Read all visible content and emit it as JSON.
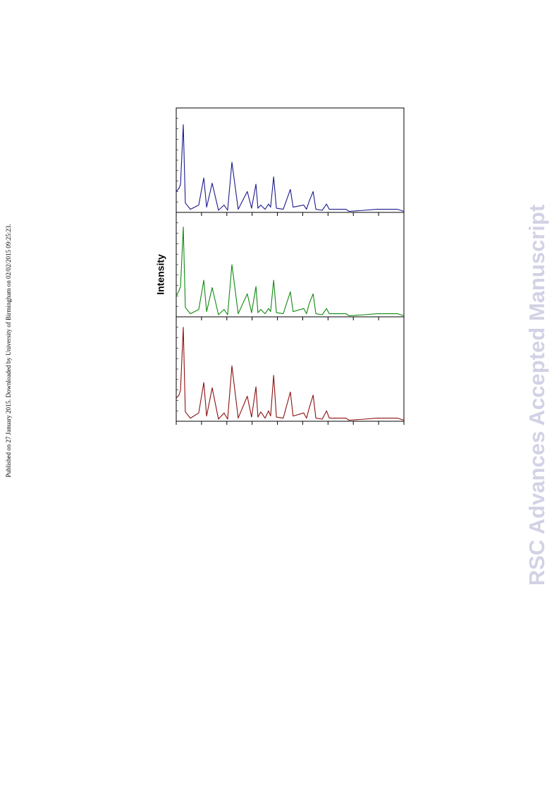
{
  "side_note": "Published on 27 January 2015. Downloaded by University of Birmingham on 02/02/2015 09:25:23.",
  "watermark": "RSC Advances Accepted Manuscript",
  "chart_data": [
    {
      "type": "line",
      "x": [
        0,
        1.1,
        1.7,
        2.8,
        3.6,
        5.6,
        8.9,
        10.9,
        12.0,
        14.2,
        16.7,
        18.9,
        20.3,
        22.0,
        24.5,
        28.1,
        29.8,
        31.5,
        32.3,
        33.4,
        35.1,
        36.5,
        37.3,
        38.5,
        39.6,
        42.3,
        45.1,
        46.2,
        50.4,
        51.5,
        52.6,
        54.1,
        55.2,
        57.7,
        59.4,
        60.5,
        67.1,
        68.3,
        74.4,
        79.4,
        87.5,
        90.0
      ],
      "xlim": [
        0,
        90
      ],
      "xticks": [
        0,
        10,
        20,
        30,
        40,
        50,
        60,
        70,
        80,
        90
      ],
      "ylim": [
        0,
        100
      ],
      "series": [
        {
          "color": "#1a1a8c",
          "values": [
            20,
            23,
            27,
            84,
            9,
            3,
            7,
            33,
            5,
            28,
            2,
            7,
            2,
            48,
            3,
            20,
            4,
            27,
            4,
            7,
            3,
            8,
            5,
            34,
            4,
            3,
            22,
            5,
            7,
            3,
            11,
            20,
            3,
            2,
            8,
            3,
            3,
            1,
            2,
            3,
            3,
            1
          ]
        }
      ]
    },
    {
      "type": "line",
      "ylabel": "Intensity",
      "x": [
        0,
        1.1,
        1.7,
        2.8,
        3.6,
        5.6,
        8.9,
        10.9,
        12.0,
        14.2,
        16.7,
        18.9,
        20.3,
        22.0,
        24.5,
        28.1,
        29.8,
        31.5,
        32.3,
        33.4,
        35.1,
        36.5,
        37.3,
        38.5,
        39.6,
        42.3,
        45.1,
        46.2,
        50.4,
        51.5,
        52.6,
        54.1,
        55.2,
        57.7,
        59.4,
        60.5,
        67.1,
        68.3,
        74.4,
        79.4,
        87.5,
        90.0
      ],
      "xlim": [
        0,
        90
      ],
      "xticks": [
        0,
        10,
        20,
        30,
        40,
        50,
        60,
        70,
        80,
        90
      ],
      "ylim": [
        0,
        100
      ],
      "series": [
        {
          "color": "#118811",
          "values": [
            20,
            25,
            29,
            86,
            9,
            3,
            7,
            35,
            5,
            28,
            2,
            7,
            2,
            50,
            3,
            22,
            4,
            29,
            4,
            7,
            3,
            8,
            5,
            35,
            4,
            3,
            24,
            5,
            8,
            3,
            13,
            22,
            3,
            2,
            8,
            3,
            3,
            1,
            2,
            3,
            3,
            1
          ]
        }
      ]
    },
    {
      "type": "line",
      "x": [
        0,
        1.1,
        1.7,
        2.8,
        3.6,
        5.6,
        8.9,
        10.9,
        12.0,
        14.2,
        16.7,
        18.9,
        20.3,
        22.0,
        24.5,
        28.1,
        29.8,
        31.5,
        32.3,
        33.4,
        35.1,
        36.5,
        37.3,
        38.5,
        39.6,
        42.3,
        45.1,
        46.2,
        50.4,
        51.5,
        52.6,
        54.1,
        55.2,
        57.7,
        59.4,
        60.5,
        67.1,
        68.3,
        74.4,
        79.4,
        87.5,
        90.0
      ],
      "xlim": [
        0,
        90
      ],
      "xticks": [
        0,
        10,
        20,
        30,
        40,
        50,
        60,
        70,
        80,
        90
      ],
      "ylim": [
        0,
        100
      ],
      "series": [
        {
          "color": "#8b1010",
          "values": [
            22,
            25,
            30,
            90,
            9,
            3,
            8,
            37,
            5,
            32,
            2,
            8,
            2,
            53,
            3,
            24,
            4,
            33,
            4,
            9,
            3,
            10,
            5,
            44,
            4,
            3,
            28,
            5,
            8,
            3,
            13,
            25,
            3,
            2,
            10,
            3,
            3,
            1,
            2,
            3,
            3,
            1
          ]
        }
      ]
    }
  ]
}
